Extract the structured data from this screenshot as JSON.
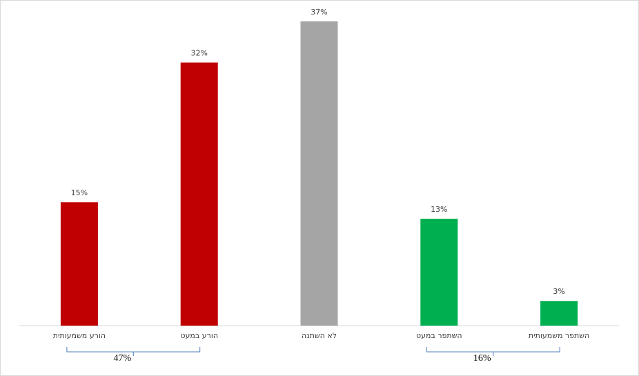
{
  "chart_data": {
    "type": "bar",
    "categories": [
      "הורע משמעותית",
      "הורע במעט",
      "לא השתנה",
      "השתפר במעט",
      "השתפר משמעותית"
    ],
    "values": [
      15,
      32,
      37,
      13,
      3
    ],
    "value_labels": [
      "15%",
      "32%",
      "37%",
      "13%",
      "3%"
    ],
    "colors": [
      "#c00000",
      "#c00000",
      "#a5a5a5",
      "#00b050",
      "#00b050"
    ],
    "ylim": [
      0,
      37
    ],
    "brackets": [
      {
        "label": "47%",
        "start": 0,
        "end": 1
      },
      {
        "label": "16%",
        "start": 3,
        "end": 4
      }
    ]
  }
}
